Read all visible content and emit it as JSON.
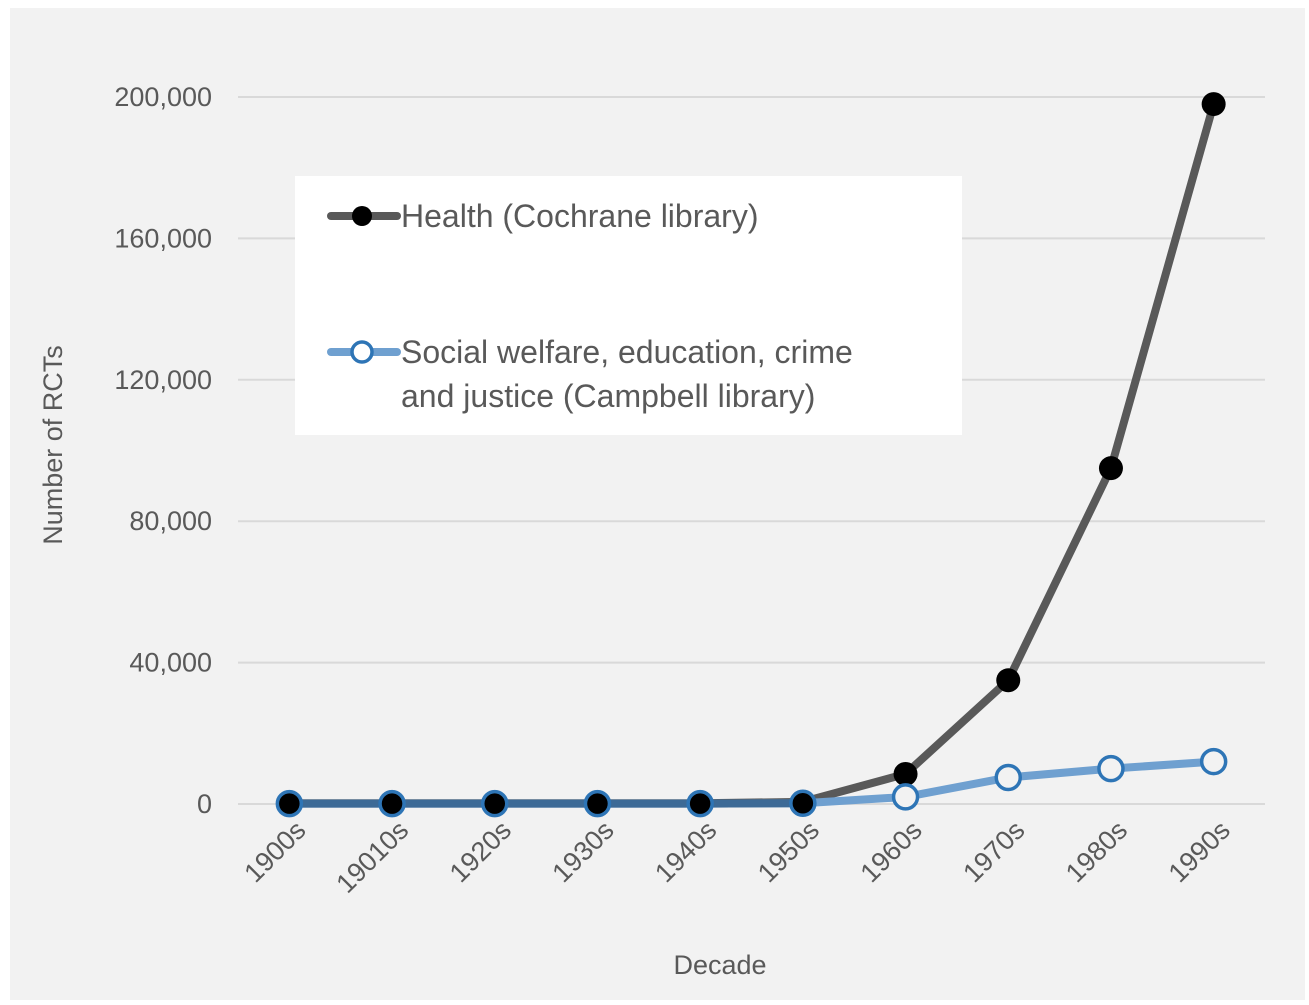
{
  "chart_data": {
    "type": "line",
    "title": "",
    "xlabel": "Decade",
    "ylabel": "Number of RCTs",
    "categories": [
      "1900s",
      "19010s",
      "1920s",
      "1930s",
      "1940s",
      "1950s",
      "1960s",
      "1970s",
      "1980s",
      "1990s"
    ],
    "ylim": [
      0,
      200000
    ],
    "yticks": [
      0,
      40000,
      80000,
      120000,
      160000,
      200000
    ],
    "ytick_labels": [
      "0",
      "40,000",
      "80,000",
      "120,000",
      "160,000",
      "200,000"
    ],
    "grid": true,
    "legend_position": "upper-left, inside plot",
    "series": [
      {
        "name": "Health (Cochrane library)",
        "color": "#595959",
        "marker": "filled-circle",
        "marker_color": "#000000",
        "values": [
          200,
          200,
          200,
          200,
          200,
          600,
          8500,
          35000,
          95000,
          198000
        ]
      },
      {
        "name": "Social welfare, education, crime and justice (Campbell library)",
        "color": "#6fa0d0",
        "marker": "hollow-circle",
        "marker_color": "#2e75b6",
        "values": [
          100,
          100,
          100,
          100,
          100,
          200,
          2000,
          7500,
          10000,
          12000
        ]
      }
    ],
    "legend_lines": [
      [
        "Health (Cochrane library)"
      ],
      [
        "Social welfare, education, crime",
        "and justice (Campbell library)"
      ]
    ],
    "background_color": "#f2f2f2",
    "gridline_color": "#d9d9d9",
    "text_color": "#595959"
  }
}
